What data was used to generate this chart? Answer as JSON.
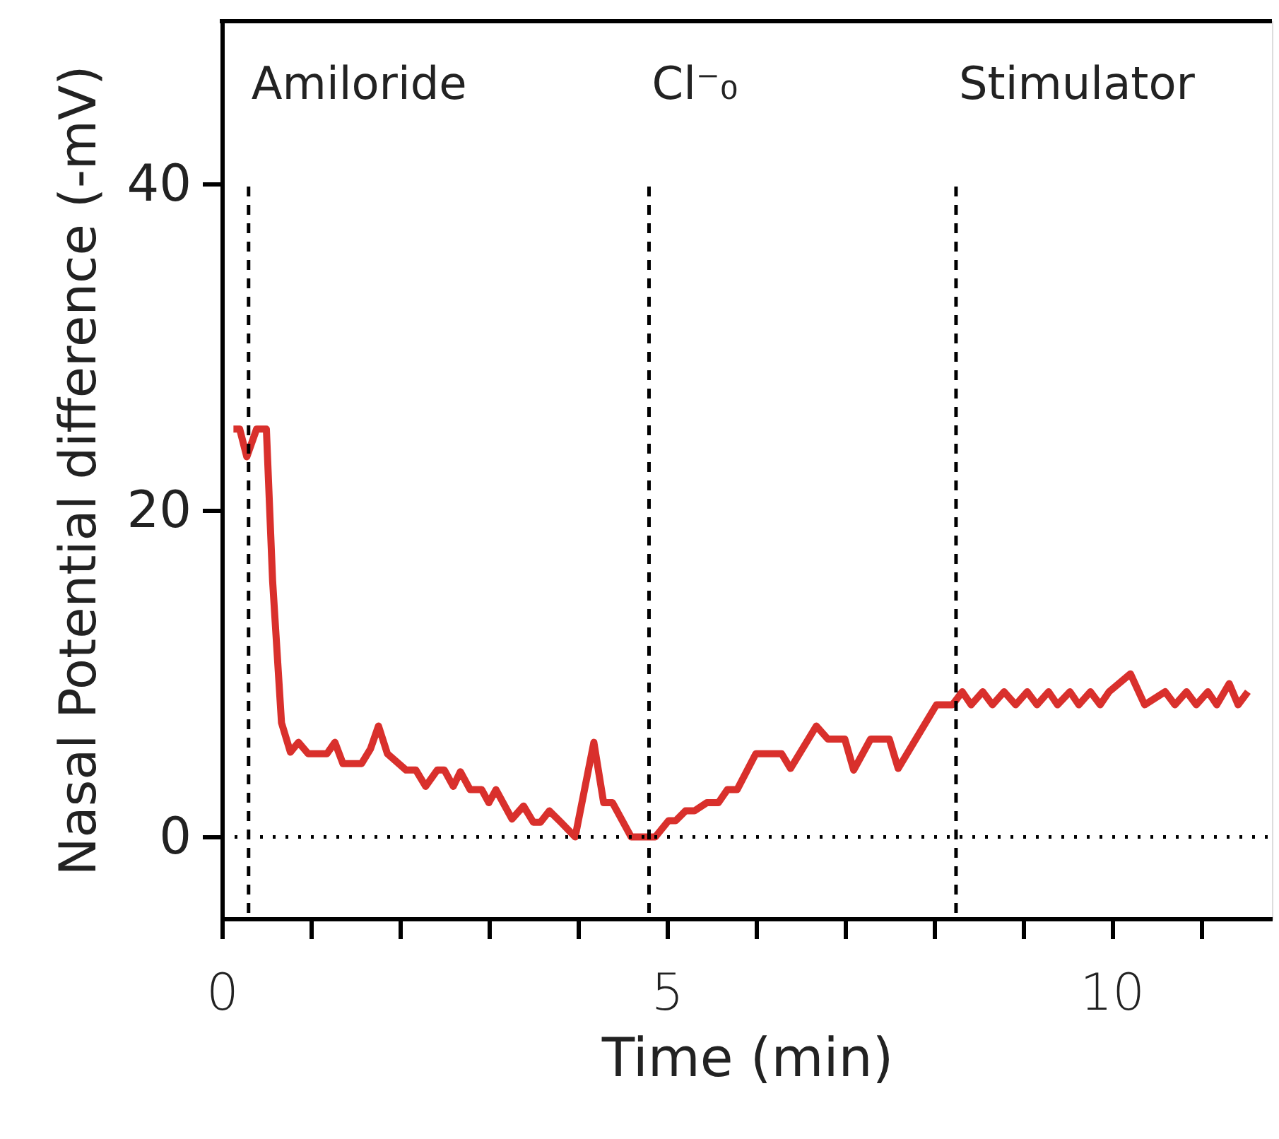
{
  "chart_data": {
    "type": "line",
    "xlabel": "Time (min)",
    "ylabel": "Nasal Potential difference (-mV)",
    "xlim": [
      0,
      11.8
    ],
    "ylim": [
      -5,
      50
    ],
    "xticks": [
      0,
      {
        "value": 1,
        "label": null
      },
      {
        "value": 2,
        "label": null
      },
      {
        "value": 3,
        "label": null
      },
      {
        "value": 4,
        "label": null
      },
      5,
      {
        "value": 6,
        "label": null
      },
      {
        "value": 7,
        "label": null
      },
      {
        "value": 8,
        "label": null
      },
      {
        "value": 9,
        "label": null
      },
      10,
      {
        "value": 11,
        "label": null
      }
    ],
    "yticks": [
      0,
      20,
      40
    ],
    "grid": false,
    "marker": "none",
    "line_style": "solid",
    "ref_lines": [
      {
        "axis": "x",
        "value": 0.3,
        "label": "Amiloride",
        "color": "#000000",
        "line_style": "dashed"
      },
      {
        "axis": "x",
        "value": 4.8,
        "label": "Cl⁻₀",
        "color": "#000000",
        "line_style": "dashed"
      },
      {
        "axis": "x",
        "value": 8.25,
        "label": "Stimulator",
        "color": "#000000",
        "line_style": "dashed"
      },
      {
        "axis": "y",
        "value": 0,
        "color": "#000000",
        "line_style": "dotted"
      }
    ],
    "series": [
      {
        "color": "#d9302c",
        "x": [
          0.13,
          0.2,
          0.28,
          0.39,
          0.5,
          0.57,
          0.67,
          0.77,
          0.86,
          0.97,
          1.18,
          1.27,
          1.36,
          1.57,
          1.67,
          1.76,
          1.86,
          2.07,
          2.18,
          2.29,
          2.42,
          2.5,
          2.6,
          2.68,
          2.79,
          2.92,
          3.0,
          3.08,
          3.26,
          3.39,
          3.5,
          3.58,
          3.68,
          3.81,
          3.97,
          4.18,
          4.29,
          4.39,
          4.6,
          4.87,
          5.02,
          5.1,
          5.21,
          5.31,
          5.45,
          5.58,
          5.68,
          5.79,
          6.0,
          6.29,
          6.39,
          6.68,
          6.81,
          7.0,
          7.1,
          7.29,
          7.5,
          7.6,
          8.03,
          8.21,
          8.32,
          8.42,
          8.55,
          8.66,
          8.79,
          8.92,
          9.05,
          9.16,
          9.29,
          9.39,
          9.53,
          9.63,
          9.76,
          9.87,
          9.97,
          10.21,
          10.37,
          10.6,
          10.71,
          10.84,
          10.95,
          11.08,
          11.18,
          11.32,
          11.42,
          11.53
        ],
        "values": [
          25,
          25,
          23.3,
          25,
          25,
          15.7,
          7,
          5.2,
          5.8,
          5.1,
          5.1,
          5.8,
          4.5,
          4.5,
          5.4,
          6.8,
          5.1,
          4.1,
          4.1,
          3.1,
          4.1,
          4.1,
          3.1,
          4.0,
          2.9,
          2.9,
          2.1,
          2.9,
          1.1,
          1.9,
          0.9,
          0.9,
          1.6,
          0.9,
          0,
          5.8,
          2.1,
          2.1,
          0,
          0,
          1.0,
          1.0,
          1.6,
          1.6,
          2.1,
          2.1,
          2.9,
          2.9,
          5.1,
          5.1,
          4.2,
          6.8,
          6.0,
          6.0,
          4.1,
          6.0,
          6.0,
          4.2,
          8.1,
          8.1,
          8.9,
          8.1,
          8.9,
          8.1,
          8.9,
          8.1,
          8.9,
          8.1,
          8.9,
          8.1,
          8.9,
          8.1,
          8.9,
          8.1,
          8.9,
          10.0,
          8.1,
          8.9,
          8.1,
          8.9,
          8.1,
          8.9,
          8.1,
          9.4,
          8.1,
          8.9
        ]
      }
    ]
  }
}
